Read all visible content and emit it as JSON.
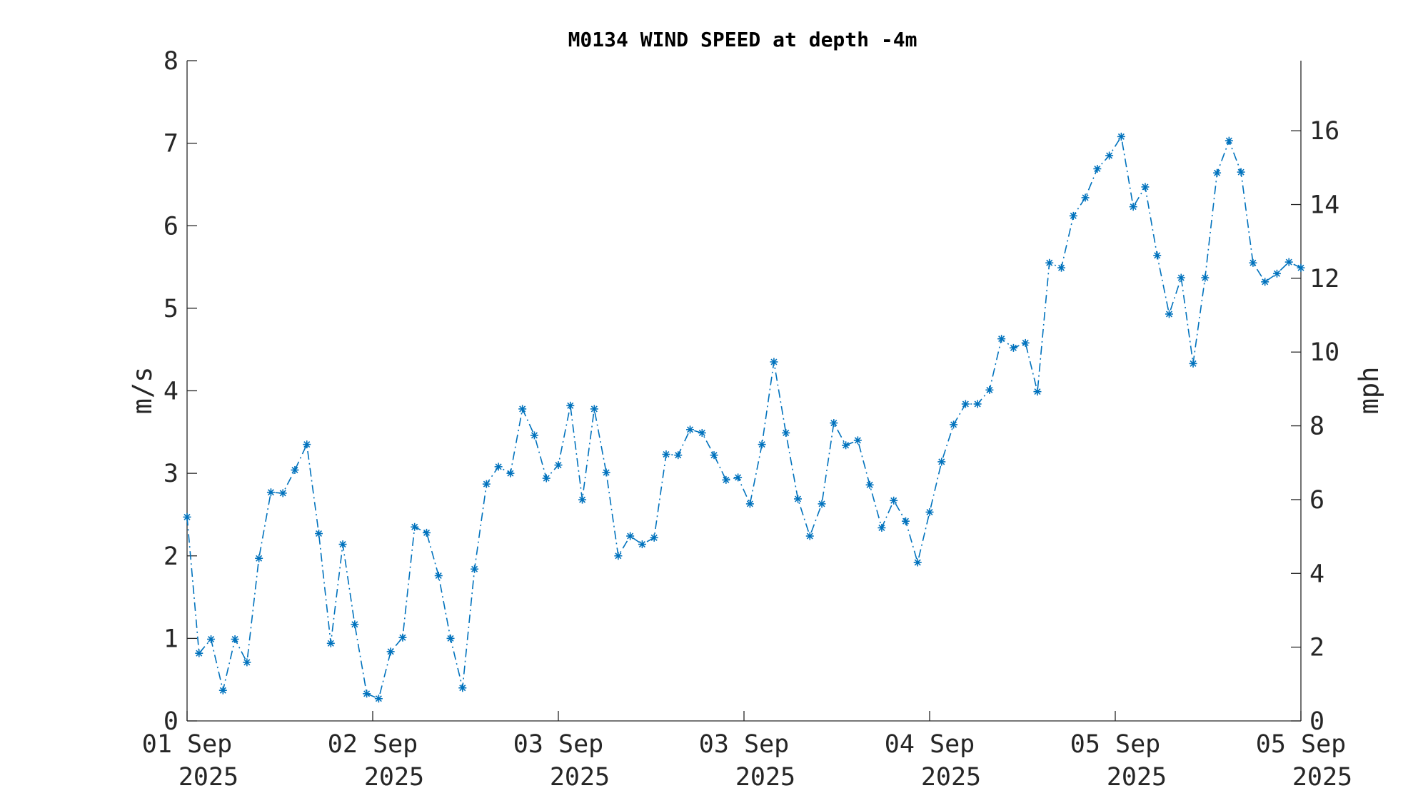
{
  "chart_data": {
    "type": "line",
    "title": "M0134 WIND SPEED at depth -4m",
    "ylabel_left": "m/s",
    "ylabel_right": "mph",
    "ylim_left": [
      0,
      8
    ],
    "ylim_right": [
      0,
      17.9
    ],
    "yticks_left": [
      "0",
      "1",
      "2",
      "3",
      "4",
      "5",
      "6",
      "7",
      "8"
    ],
    "yticks_right": [
      "0",
      "2",
      "4",
      "6",
      "8",
      "10",
      "12",
      "14",
      "16"
    ],
    "xticks": [
      {
        "line1": "01 Sep",
        "line2": "2025"
      },
      {
        "line1": "02 Sep",
        "line2": "2025"
      },
      {
        "line1": "03 Sep",
        "line2": "2025"
      },
      {
        "line1": "03 Sep",
        "line2": "2025"
      },
      {
        "line1": "04 Sep",
        "line2": "2025"
      },
      {
        "line1": "05 Sep",
        "line2": "2025"
      },
      {
        "line1": "05 Sep",
        "line2": "2025"
      }
    ],
    "series": [
      {
        "color": "#0072BD",
        "marker": "asterisk",
        "line_style": "dash-dot",
        "values": [
          2.47,
          0.82,
          0.99,
          0.37,
          0.99,
          0.71,
          1.97,
          2.77,
          2.76,
          3.04,
          3.35,
          2.27,
          0.94,
          2.14,
          1.17,
          0.33,
          0.27,
          0.84,
          1.01,
          2.35,
          2.28,
          1.76,
          1.0,
          0.4,
          1.84,
          2.87,
          3.08,
          3.0,
          3.78,
          3.46,
          2.94,
          3.1,
          3.82,
          2.68,
          3.78,
          3.01,
          2.0,
          2.24,
          2.14,
          2.22,
          3.23,
          3.22,
          3.53,
          3.49,
          3.22,
          2.92,
          2.95,
          2.63,
          3.35,
          4.35,
          3.49,
          2.69,
          2.24,
          2.63,
          3.61,
          3.34,
          3.4,
          2.86,
          2.34,
          2.67,
          2.42,
          1.92,
          2.53,
          3.14,
          3.59,
          3.84,
          3.84,
          4.01,
          4.63,
          4.52,
          4.58,
          3.99,
          5.55,
          5.49,
          6.12,
          6.34,
          6.69,
          6.85,
          7.08,
          6.23,
          6.47,
          5.64,
          4.93,
          5.37,
          4.33,
          5.37,
          6.64,
          7.03,
          6.65,
          5.55,
          5.32,
          5.42,
          5.56,
          5.49
        ]
      }
    ],
    "grid": false
  }
}
